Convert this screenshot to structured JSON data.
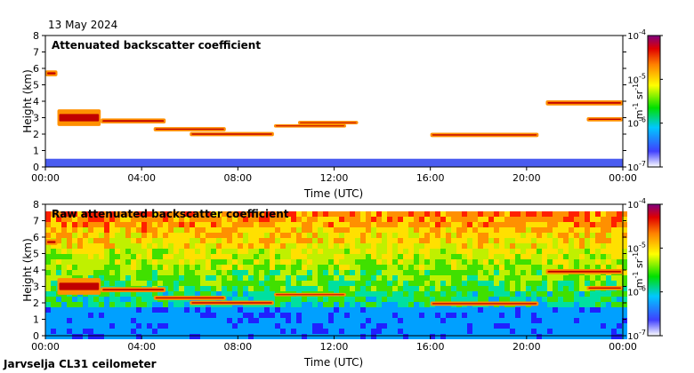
{
  "date_label": "13 May 2024",
  "footer_label": "Jarvselja CL31 ceilometer",
  "chart_data": [
    {
      "type": "heatmap",
      "title": "Attenuated backscatter coefficient",
      "xlabel": "Time (UTC)",
      "ylabel": "Height (km)",
      "xlim": [
        0,
        24
      ],
      "ylim": [
        0,
        8
      ],
      "x_ticks": [
        "00:00",
        "04:00",
        "08:00",
        "12:00",
        "16:00",
        "20:00",
        "00:00"
      ],
      "y_ticks": [
        "0",
        "1",
        "2",
        "3",
        "4",
        "5",
        "6",
        "7",
        "8"
      ],
      "colorbar": {
        "label_base": "m",
        "label_exp1": "-1",
        "label_mid": " sr",
        "label_exp2": "-1",
        "scale": "log",
        "range": [
          1e-07,
          0.0001
        ],
        "ticks": [
          {
            "base": "10",
            "exp": "-4"
          },
          {
            "base": "10",
            "exp": "-5"
          },
          {
            "base": "10",
            "exp": "-6"
          },
          {
            "base": "10",
            "exp": "-7"
          }
        ]
      },
      "layers": [
        {
          "t0": 0.0,
          "t1": 0.5,
          "h": 5.7,
          "thick": 0.25
        },
        {
          "t0": 0.5,
          "t1": 2.3,
          "h": 3.0,
          "thick": 0.9
        },
        {
          "t0": 2.3,
          "t1": 5.0,
          "h": 2.8,
          "thick": 0.2
        },
        {
          "t0": 4.5,
          "t1": 7.5,
          "h": 2.3,
          "thick": 0.15
        },
        {
          "t0": 6.0,
          "t1": 9.5,
          "h": 2.0,
          "thick": 0.15
        },
        {
          "t0": 9.5,
          "t1": 12.5,
          "h": 2.5,
          "thick": 0.1
        },
        {
          "t0": 10.5,
          "t1": 13.0,
          "h": 2.7,
          "thick": 0.1
        },
        {
          "t0": 16.0,
          "t1": 20.5,
          "h": 1.95,
          "thick": 0.15
        },
        {
          "t0": 20.8,
          "t1": 24.0,
          "h": 3.9,
          "thick": 0.2
        },
        {
          "t0": 22.5,
          "t1": 24.0,
          "h": 2.9,
          "thick": 0.15
        }
      ],
      "noise_layer": false
    },
    {
      "type": "heatmap",
      "title": "Raw attenuated backscatter coefficient",
      "xlabel": "Time (UTC)",
      "ylabel": "Height (km)",
      "xlim": [
        0,
        24
      ],
      "ylim": [
        0,
        8
      ],
      "x_ticks": [
        "00:00",
        "04:00",
        "08:00",
        "12:00",
        "16:00",
        "20:00",
        "00:00"
      ],
      "y_ticks": [
        "0",
        "1",
        "2",
        "3",
        "4",
        "5",
        "6",
        "7",
        "8"
      ],
      "colorbar": {
        "label_base": "m",
        "label_exp1": "-1",
        "label_mid": " sr",
        "label_exp2": "-1",
        "scale": "log",
        "range": [
          1e-07,
          0.0001
        ],
        "ticks": [
          {
            "base": "10",
            "exp": "-4"
          },
          {
            "base": "10",
            "exp": "-5"
          },
          {
            "base": "10",
            "exp": "-6"
          },
          {
            "base": "10",
            "exp": "-7"
          }
        ]
      },
      "layers": [
        {
          "t0": 0.0,
          "t1": 0.5,
          "h": 5.7,
          "thick": 0.25
        },
        {
          "t0": 0.5,
          "t1": 2.3,
          "h": 3.0,
          "thick": 0.9
        },
        {
          "t0": 2.3,
          "t1": 5.0,
          "h": 2.8,
          "thick": 0.2
        },
        {
          "t0": 4.5,
          "t1": 7.5,
          "h": 2.3,
          "thick": 0.15
        },
        {
          "t0": 6.0,
          "t1": 9.5,
          "h": 2.0,
          "thick": 0.15
        },
        {
          "t0": 9.5,
          "t1": 12.5,
          "h": 2.5,
          "thick": 0.1
        },
        {
          "t0": 16.0,
          "t1": 20.5,
          "h": 1.95,
          "thick": 0.15
        },
        {
          "t0": 20.8,
          "t1": 24.0,
          "h": 3.9,
          "thick": 0.2
        },
        {
          "t0": 22.5,
          "t1": 24.0,
          "h": 2.9,
          "thick": 0.15
        }
      ],
      "noise_layer": true
    }
  ]
}
